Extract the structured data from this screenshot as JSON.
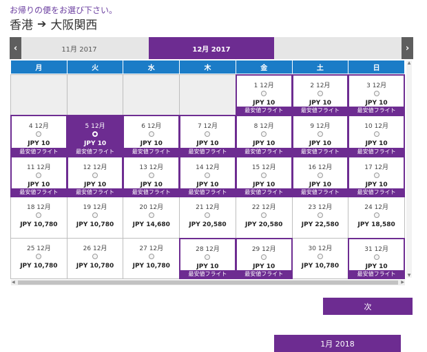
{
  "prompt": "お帰りの便をお選び下さい。",
  "route": {
    "origin": "香港",
    "arrow": "➔",
    "destination": "大阪関西"
  },
  "nav": {
    "prev_icon": "‹",
    "next_icon": "›"
  },
  "months": {
    "prev": "11月 2017",
    "current": "12月 2017",
    "next": "1月 2018"
  },
  "weekdays": [
    "月",
    "火",
    "水",
    "木",
    "金",
    "土",
    "日"
  ],
  "cheap_label": "最安値フライト",
  "next_button": "次",
  "scroll_arrows": {
    "left": "◀",
    "right": "▶",
    "up": "▲",
    "down": "▼"
  },
  "colors": {
    "brand": "#6d2c91",
    "header": "#1b7cc7"
  },
  "days": [
    {
      "empty": true
    },
    {
      "empty": true
    },
    {
      "empty": true
    },
    {
      "empty": true
    },
    {
      "date": "1 12月",
      "price": "JPY 10",
      "cheap": true
    },
    {
      "date": "2 12月",
      "price": "JPY 10",
      "cheap": true
    },
    {
      "date": "3 12月",
      "price": "JPY 10",
      "cheap": true
    },
    {
      "date": "4 12月",
      "price": "JPY 10",
      "cheap": true
    },
    {
      "date": "5 12月",
      "price": "JPY 10",
      "cheap": true,
      "selected": true
    },
    {
      "date": "6 12月",
      "price": "JPY 10",
      "cheap": true
    },
    {
      "date": "7 12月",
      "price": "JPY 10",
      "cheap": true
    },
    {
      "date": "8 12月",
      "price": "JPY 10",
      "cheap": true
    },
    {
      "date": "9 12月",
      "price": "JPY 10",
      "cheap": true
    },
    {
      "date": "10 12月",
      "price": "JPY 10",
      "cheap": true
    },
    {
      "date": "11 12月",
      "price": "JPY 10",
      "cheap": true
    },
    {
      "date": "12 12月",
      "price": "JPY 10",
      "cheap": true
    },
    {
      "date": "13 12月",
      "price": "JPY 10",
      "cheap": true
    },
    {
      "date": "14 12月",
      "price": "JPY 10",
      "cheap": true
    },
    {
      "date": "15 12月",
      "price": "JPY 10",
      "cheap": true
    },
    {
      "date": "16 12月",
      "price": "JPY 10",
      "cheap": true
    },
    {
      "date": "17 12月",
      "price": "JPY 10",
      "cheap": true
    },
    {
      "date": "18 12月",
      "price": "JPY 10,780"
    },
    {
      "date": "19 12月",
      "price": "JPY 10,780"
    },
    {
      "date": "20 12月",
      "price": "JPY 14,680"
    },
    {
      "date": "21 12月",
      "price": "JPY 20,580"
    },
    {
      "date": "22 12月",
      "price": "JPY 20,580"
    },
    {
      "date": "23 12月",
      "price": "JPY 22,580"
    },
    {
      "date": "24 12月",
      "price": "JPY 18,580"
    },
    {
      "date": "25 12月",
      "price": "JPY 10,780"
    },
    {
      "date": "26 12月",
      "price": "JPY 10,780"
    },
    {
      "date": "27 12月",
      "price": "JPY 10,780"
    },
    {
      "date": "28 12月",
      "price": "JPY 10",
      "cheap": true
    },
    {
      "date": "29 12月",
      "price": "JPY 10",
      "cheap": true
    },
    {
      "date": "30 12月",
      "price": "JPY 10,780"
    },
    {
      "date": "31 12月",
      "price": "JPY 10",
      "cheap": true
    }
  ]
}
